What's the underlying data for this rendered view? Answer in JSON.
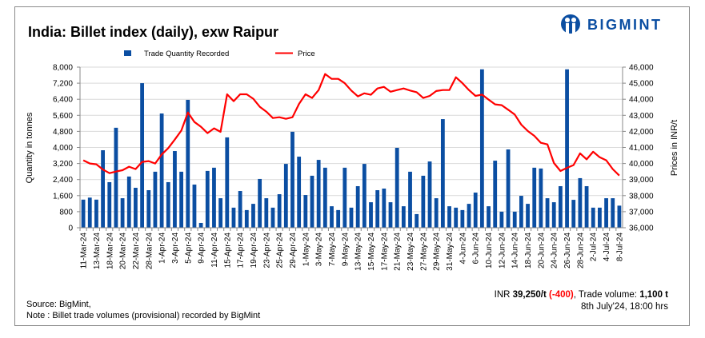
{
  "header": {
    "title": "India: Billet index (daily), exw Raipur",
    "logo_text": "BIGMINT"
  },
  "chart_data": {
    "type": "bar+line",
    "title": "India: Billet index (daily), exw Raipur",
    "ylabel": "Quantity in tonnes",
    "y2label": "Prices in INR/t",
    "ylim": [
      0,
      8000
    ],
    "y2lim": [
      36000,
      46000
    ],
    "yticks": [
      "0",
      "800",
      "1,600",
      "2,400",
      "3,200",
      "4,000",
      "4,800",
      "5,600",
      "6,400",
      "7,200",
      "8,000"
    ],
    "y2ticks": [
      "36,000",
      "37,000",
      "38,000",
      "39,000",
      "40,000",
      "41,000",
      "42,000",
      "43,000",
      "44,000",
      "45,000",
      "46,000"
    ],
    "legend": [
      "Trade Quantity Recorded",
      "Price"
    ],
    "legend_position": "top",
    "grid": true,
    "x_labels": [
      "11-Mar-24",
      "13-Mar-24",
      "18-Mar-24",
      "20-Mar-24",
      "22-Mar-24",
      "28-Mar-24",
      "1-Apr-24",
      "3-Apr-24",
      "5-Apr-24",
      "9-Apr-24",
      "11-Apr-24",
      "15-Apr-24",
      "17-Apr-24",
      "19-Apr-24",
      "23-Apr-24",
      "25-Apr-24",
      "29-Apr-24",
      "1-May-24",
      "3-May-24",
      "7-May-24",
      "9-May-24",
      "13-May-24",
      "15-May-24",
      "17-May-24",
      "21-May-24",
      "23-May-24",
      "27-May-24",
      "29-May-24",
      "31-May-24",
      "4-Jun-24",
      "6-Jun-24",
      "10-Jun-24",
      "12-Jun-24",
      "14-Jun-24",
      "18-Jun-24",
      "20-Jun-24",
      "24-Jun-24",
      "26-Jun-24",
      "28-Jun-24",
      "2-Jul-24",
      "4-Jul-24",
      "8-Jul-24"
    ],
    "series": [
      {
        "name": "Trade Quantity Recorded",
        "type": "bar",
        "color": "#0b4ea2",
        "values": [
          1400,
          1500,
          1400,
          3860,
          2270,
          4980,
          1470,
          2550,
          1990,
          7200,
          1870,
          2790,
          5690,
          2270,
          3820,
          2790,
          6370,
          2150,
          240,
          2830,
          2990,
          1470,
          4500,
          1000,
          1830,
          880,
          1190,
          2430,
          1470,
          1000,
          1670,
          3180,
          4780,
          3540,
          1630,
          2590,
          3380,
          2990,
          1070,
          880,
          2990,
          1000,
          2070,
          3180,
          1270,
          1870,
          1950,
          1270,
          3980,
          1070,
          2790,
          680,
          2590,
          3300,
          1470,
          5410,
          1070,
          1000,
          880,
          1190,
          1750,
          7890,
          1070,
          3340,
          800,
          3900,
          800,
          1590,
          1190,
          2990,
          2950,
          1470,
          1270,
          2070,
          7890,
          1390,
          2470,
          2070,
          1000,
          1000,
          1470,
          1470,
          1100
        ]
      },
      {
        "name": "Price",
        "type": "line",
        "color": "#ff0000",
        "axis": "right",
        "values": [
          40200,
          40000,
          39950,
          39620,
          39400,
          39500,
          39580,
          39800,
          39650,
          40100,
          40150,
          40000,
          40560,
          40960,
          41490,
          42050,
          43180,
          42580,
          42290,
          41890,
          42190,
          41970,
          44310,
          43880,
          44310,
          44310,
          44030,
          43530,
          43230,
          42830,
          42880,
          42780,
          42880,
          43710,
          44310,
          44080,
          44570,
          45570,
          45270,
          45270,
          45000,
          44540,
          44180,
          44370,
          44280,
          44670,
          44770,
          44470,
          44570,
          44670,
          44540,
          44440,
          44080,
          44210,
          44510,
          44570,
          44570,
          45370,
          45000,
          44570,
          44210,
          44290,
          43980,
          43680,
          43630,
          43350,
          43050,
          42420,
          42020,
          41720,
          41290,
          41190,
          40030,
          39530,
          39730,
          39900,
          40630,
          40260,
          40730,
          40390,
          40200,
          39650,
          39250
        ]
      }
    ]
  },
  "footer": {
    "source": "Source: BigMint,",
    "note": "Note : Billet trade volumes (provisional) recorded by BigMint",
    "price_prefix": "INR ",
    "price": "39,250/t",
    "change": "(-400)",
    "volume_label": ", Trade volume: ",
    "volume": "1,100 t",
    "timestamp": "8th July'24, 18:00 hrs"
  }
}
